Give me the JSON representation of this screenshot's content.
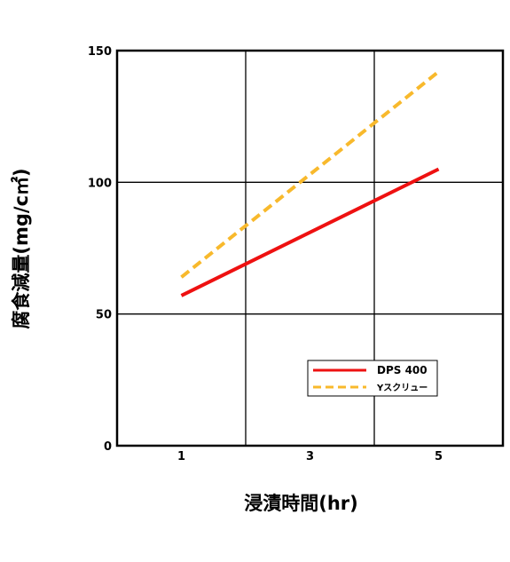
{
  "chart_data": {
    "type": "line",
    "title": "",
    "xlabel": "浸漬時間(hr)",
    "ylabel": "腐食減量(mg/c㎡)",
    "xlim": [
      0,
      6
    ],
    "ylim": [
      0,
      150
    ],
    "x_ticks": [
      1,
      3,
      5
    ],
    "y_ticks": [
      0,
      50,
      100,
      150
    ],
    "grid": true,
    "legend_position": "lower-right",
    "series": [
      {
        "name": "DPS 400",
        "color": "#ee1111",
        "style": "solid",
        "x": [
          1,
          5
        ],
        "y": [
          57,
          105
        ]
      },
      {
        "name": "Yスクリュー",
        "color": "#f8b92c",
        "style": "dashed",
        "x": [
          1,
          5
        ],
        "y": [
          64,
          142
        ]
      }
    ]
  }
}
